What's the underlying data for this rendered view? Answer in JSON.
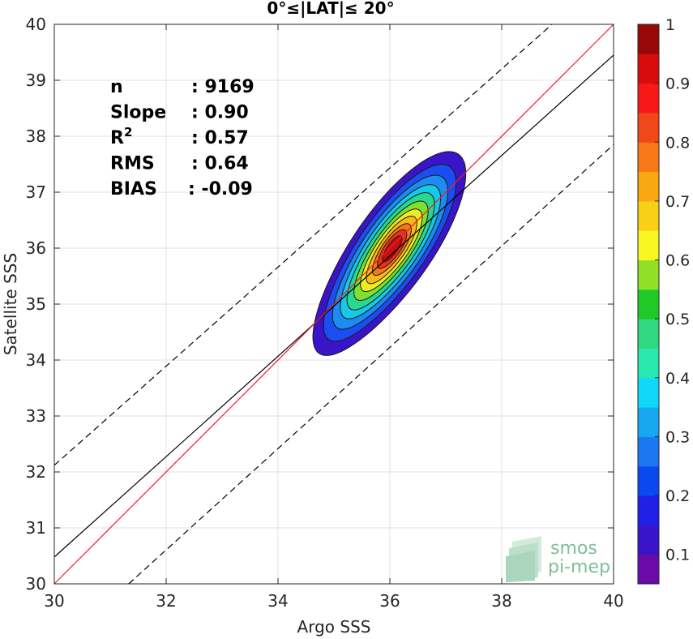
{
  "chart_data": {
    "type": "contour",
    "title": "0°≤|LAT|≤ 20°",
    "xlabel": "Argo SSS",
    "ylabel": "Satellite SSS",
    "xlim": [
      30,
      40
    ],
    "ylim": [
      30,
      40
    ],
    "x_ticks": [
      30,
      32,
      34,
      36,
      38,
      40
    ],
    "y_ticks": [
      30,
      31,
      32,
      33,
      34,
      35,
      36,
      37,
      38,
      39,
      40
    ],
    "grid": true,
    "stats": [
      {
        "label": "n",
        "value": ": 9169"
      },
      {
        "label": "Slope",
        "value": ": 0.90"
      },
      {
        "label": "R",
        "sup": "2",
        "value": ": 0.57"
      },
      {
        "label": "RMS",
        "value": ": 0.64"
      },
      {
        "label": "BIAS",
        "value": ": -0.09"
      }
    ],
    "lines": {
      "identity": {
        "color": "#e8222a",
        "points": [
          [
            30,
            30
          ],
          [
            40,
            40
          ]
        ]
      },
      "fit": {
        "color": "#000000",
        "points": [
          [
            30,
            30.48
          ],
          [
            40,
            39.45
          ]
        ]
      },
      "fit_upper": {
        "color": "#000000",
        "style": "dashed",
        "points": [
          [
            30,
            32.12
          ],
          [
            38.9,
            40
          ]
        ]
      },
      "fit_lower": {
        "color": "#000000",
        "style": "dashed",
        "points": [
          [
            31.33,
            30
          ],
          [
            40,
            37.85
          ]
        ]
      }
    },
    "density": {
      "center": [
        36.05,
        36.0
      ],
      "orientation_deg": 55,
      "levels": [
        {
          "level": 0.05,
          "a": 2.05,
          "b": 0.7,
          "color": "#3a14c8"
        },
        {
          "level": 0.15,
          "a": 1.78,
          "b": 0.6,
          "color": "#1a4ef0"
        },
        {
          "level": 0.25,
          "a": 1.55,
          "b": 0.52,
          "color": "#1c8cf0"
        },
        {
          "level": 0.35,
          "a": 1.35,
          "b": 0.45,
          "color": "#18c8e8"
        },
        {
          "level": 0.45,
          "a": 1.18,
          "b": 0.39,
          "color": "#28d890"
        },
        {
          "level": 0.55,
          "a": 1.0,
          "b": 0.33,
          "color": "#80e030"
        },
        {
          "level": 0.65,
          "a": 0.83,
          "b": 0.28,
          "color": "#f0ec20"
        },
        {
          "level": 0.75,
          "a": 0.68,
          "b": 0.23,
          "color": "#f8b818"
        },
        {
          "level": 0.85,
          "a": 0.52,
          "b": 0.18,
          "color": "#f87818"
        },
        {
          "level": 0.9,
          "a": 0.39,
          "b": 0.14,
          "color": "#f03018"
        },
        {
          "level": 0.97,
          "a": 0.26,
          "b": 0.09,
          "color": "#c80e10"
        }
      ]
    },
    "colorbar": {
      "min": 0.05,
      "max": 1,
      "ticks": [
        "0.1",
        "0.2",
        "0.3",
        "0.4",
        "0.5",
        "0.6",
        "0.7",
        "0.8",
        "0.9",
        "1"
      ],
      "tick_values": [
        0.1,
        0.2,
        0.3,
        0.4,
        0.5,
        0.6,
        0.7,
        0.8,
        0.9,
        1.0
      ],
      "bands": [
        "#6a0aa8",
        "#3a14c8",
        "#2020e8",
        "#0a48f0",
        "#1c78f0",
        "#18a8f0",
        "#10d8f8",
        "#28e8b0",
        "#30d880",
        "#20c828",
        "#90e028",
        "#f8f820",
        "#f8d018",
        "#f8a810",
        "#f87818",
        "#f04818",
        "#f81818",
        "#d80c0c",
        "#980808"
      ]
    }
  },
  "logo": {
    "line1": "smos",
    "line2": "pi-mep",
    "color": "#7fbf9a"
  }
}
